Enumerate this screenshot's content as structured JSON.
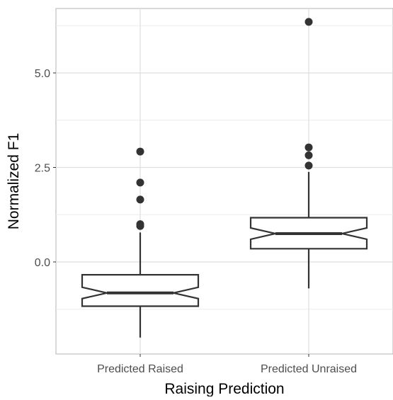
{
  "chart_data": {
    "type": "boxplot",
    "notched": true,
    "xlabel": "Raising Prediction",
    "ylabel": "Normalized F1",
    "categories": [
      "Predicted Raised",
      "Predicted Unraised"
    ],
    "y_ticks": [
      0.0,
      2.5,
      5.0
    ],
    "y_tick_labels": [
      "0.0",
      "2.5",
      "5.0"
    ],
    "ylim": [
      -2.45,
      6.7
    ],
    "grid": true,
    "theme": "light",
    "colors": {
      "box_stroke": "#333333",
      "points": "#333333",
      "grid_major": "#dedede",
      "grid_minor": "#ededed",
      "panel_border": "#b3b3b3"
    },
    "boxes": [
      {
        "category": "Predicted Raised",
        "q1": -1.17,
        "median": -0.82,
        "q3": -0.34,
        "notch_low": -0.97,
        "notch_high": -0.67,
        "whisker_low": -2.0,
        "whisker_high": 0.78,
        "outliers": [
          0.95,
          1.0,
          1.65,
          2.1,
          2.92
        ]
      },
      {
        "category": "Predicted Unraised",
        "q1": 0.35,
        "median": 0.75,
        "q3": 1.17,
        "notch_low": 0.6,
        "notch_high": 0.9,
        "whisker_low": -0.7,
        "whisker_high": 2.38,
        "outliers": [
          2.55,
          2.82,
          3.03,
          6.35
        ]
      }
    ]
  }
}
